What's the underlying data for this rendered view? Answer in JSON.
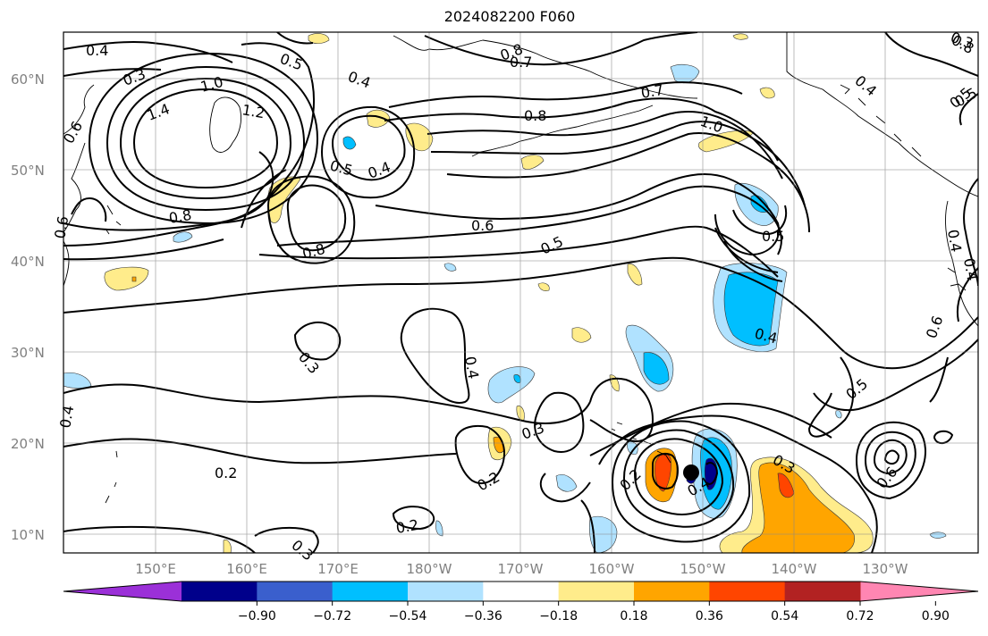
{
  "title": "2024082200 F060",
  "lat_labels": [
    "60°N",
    "50°N",
    "40°N",
    "30°N",
    "20°N",
    "10°N"
  ],
  "lon_labels": [
    "150°E",
    "160°E",
    "170°E",
    "180°W",
    "170°W",
    "160°W",
    "150°W",
    "140°W",
    "130°W"
  ],
  "colorbar": {
    "tick_labels": [
      "−0.90",
      "−0.72",
      "−0.54",
      "−0.36",
      "−0.18",
      "0.18",
      "0.36",
      "0.54",
      "0.72",
      "0.90"
    ],
    "colors": [
      "#9b30d8",
      "#00008b",
      "#3a5fcd",
      "#00bfff",
      "#b0e2ff",
      "#ffffff",
      "#ffec8b",
      "#ffa500",
      "#ff4500",
      "#b22222",
      "#ff86b2"
    ]
  },
  "contour_labels": [
    "0.4",
    "0.3",
    "0.5",
    "0.6",
    "1.0",
    "1.4",
    "1.2",
    "0.4",
    "0.8",
    "0.7",
    "0.8",
    "0.7",
    "0.8",
    "1.0",
    "0.5",
    "0.4",
    "0.5",
    "0.4",
    "0.8",
    "0.8",
    "0.6",
    "0.5",
    "0.5",
    "0.4",
    "0.4",
    "0.3",
    "0.4",
    "0.3",
    "0.2",
    "0.2",
    "0.2",
    "0.3",
    "0.2",
    "0.4",
    "0.3",
    "0.6",
    "0.5",
    "0.6",
    "0.4",
    "0.4",
    "0.5",
    "0.3",
    "0.6"
  ]
}
